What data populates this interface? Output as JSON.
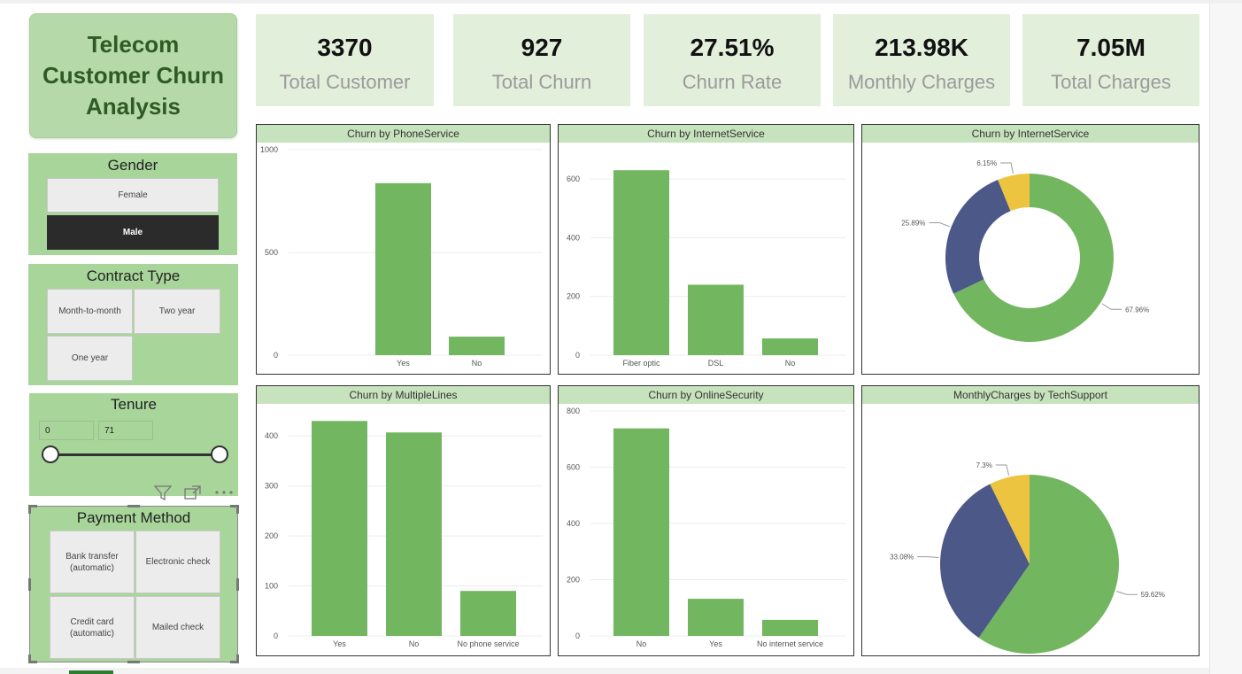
{
  "title": "Telecom Customer Churn Analysis",
  "title_lines": [
    "Telecom",
    "Customer Churn",
    "Analysis"
  ],
  "kpis": [
    {
      "value": "3370",
      "label": "Total Customer"
    },
    {
      "value": "927",
      "label": "Total Churn"
    },
    {
      "value": "27.51%",
      "label": "Churn Rate"
    },
    {
      "value": "213.98K",
      "label": "Monthly Charges"
    },
    {
      "value": "7.05M",
      "label": "Total Charges"
    }
  ],
  "slicers": {
    "gender": {
      "header": "Gender",
      "options": [
        "Female",
        "Male"
      ],
      "selected": "Male"
    },
    "contract": {
      "header": "Contract Type",
      "options": [
        "Month-to-month",
        "Two year",
        "One year"
      ]
    },
    "tenure": {
      "header": "Tenure",
      "min": "0",
      "max": "71"
    },
    "payment": {
      "header": "Payment Method",
      "options": [
        "Bank transfer (automatic)",
        "Electronic check",
        "Credit card (automatic)",
        "Mailed check"
      ]
    }
  },
  "toolbar": {
    "filter_icon": "filter-icon",
    "focus_icon": "focus-mode-icon",
    "more_icon": "more-options-icon"
  },
  "colors": {
    "green": "#72b660",
    "navy": "#4b5888",
    "yellow": "#ecc440",
    "header": "#c6e3bd"
  },
  "chart_data": [
    {
      "id": "phone",
      "type": "bar",
      "title": "Churn by PhoneService",
      "categories": [
        "Yes",
        "No"
      ],
      "values": [
        837,
        90
      ],
      "ylim": [
        0,
        1000
      ],
      "yticks": [
        0,
        500,
        1000
      ]
    },
    {
      "id": "internet",
      "type": "bar",
      "title": "Churn by InternetService",
      "categories": [
        "Fiber optic",
        "DSL",
        "No"
      ],
      "values": [
        630,
        240,
        57
      ],
      "ylim": [
        0,
        700
      ],
      "yticks": [
        0,
        200,
        400,
        600
      ]
    },
    {
      "id": "internet-donut",
      "type": "pie",
      "donut": true,
      "title": "Churn by InternetService",
      "slices": [
        {
          "value": 67.96,
          "label": "67.96%"
        },
        {
          "value": 25.89,
          "label": "25.89%"
        },
        {
          "value": 6.15,
          "label": "6.15%"
        }
      ]
    },
    {
      "id": "multiple",
      "type": "bar",
      "title": "Churn by MultipleLines",
      "categories": [
        "Yes",
        "No",
        "No phone service"
      ],
      "values": [
        430,
        407,
        90
      ],
      "ylim": [
        0,
        450
      ],
      "yticks": [
        0,
        100,
        200,
        300,
        400
      ]
    },
    {
      "id": "security",
      "type": "bar",
      "title": "Churn by OnlineSecurity",
      "categories": [
        "No",
        "Yes",
        "No internet service"
      ],
      "values": [
        738,
        132,
        57
      ],
      "ylim": [
        0,
        800
      ],
      "yticks": [
        0,
        200,
        400,
        600,
        800
      ]
    },
    {
      "id": "techsupport-pie",
      "type": "pie",
      "donut": false,
      "title": "MonthlyCharges by TechSupport",
      "slices": [
        {
          "value": 59.62,
          "label": "59.62%"
        },
        {
          "value": 33.08,
          "label": "33.08%"
        },
        {
          "value": 7.3,
          "label": "7.3%"
        }
      ]
    }
  ]
}
